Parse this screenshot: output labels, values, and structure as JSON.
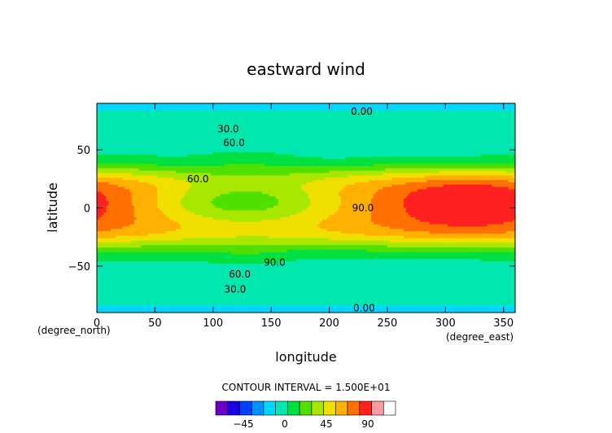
{
  "chart_data": {
    "type": "heatmap",
    "title": "eastward wind",
    "xlabel": "longitude",
    "ylabel": "latitude",
    "x_unit": "(degree_east)",
    "y_unit": "(degree_north)",
    "xlim": [
      0,
      360
    ],
    "ylim": [
      -90,
      90
    ],
    "x_ticks": [
      0,
      50,
      100,
      150,
      200,
      250,
      300,
      350
    ],
    "y_ticks": [
      -50,
      0,
      50
    ],
    "contour_interval_text": "CONTOUR INTERVAL = 1.500E+01",
    "contour_labels": [
      {
        "text": "0.00",
        "lon": 228,
        "lat": 83
      },
      {
        "text": "30.0",
        "lon": 113,
        "lat": 68
      },
      {
        "text": "60.0",
        "lon": 118,
        "lat": 56
      },
      {
        "text": "60.0",
        "lon": 87,
        "lat": 25
      },
      {
        "text": "90.0",
        "lon": 229,
        "lat": 0
      },
      {
        "text": "90.0",
        "lon": 153,
        "lat": -47
      },
      {
        "text": "60.0",
        "lon": 123,
        "lat": -57
      },
      {
        "text": "30.0",
        "lon": 119,
        "lat": -70
      },
      {
        "text": "0.00",
        "lon": 230,
        "lat": -86
      }
    ],
    "levels": [
      -60,
      -45,
      -30,
      -15,
      0,
      15,
      30,
      45,
      60,
      75,
      90,
      105
    ],
    "colorbar_ticks": [
      -45,
      0,
      45,
      90
    ],
    "colors": [
      "#6a00c8",
      "#1a00e0",
      "#0040ff",
      "#0090ff",
      "#00d8ff",
      "#00e8b0",
      "#00e040",
      "#50e000",
      "#a8e800",
      "#f0e000",
      "#ffb000",
      "#ff7000",
      "#ff2020",
      "#ff9aa0",
      "#ffffff"
    ],
    "grid": false
  }
}
